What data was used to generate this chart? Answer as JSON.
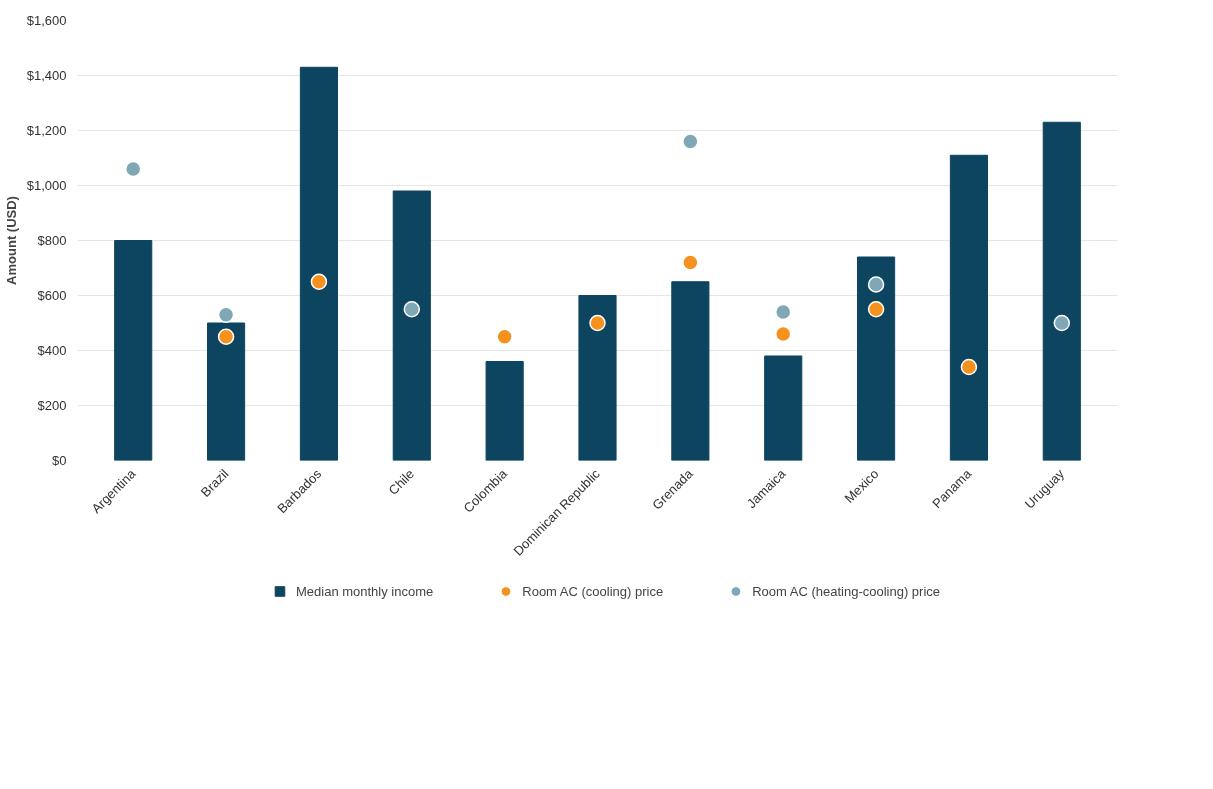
{
  "chart_data": {
    "type": "bar",
    "ylabel": "Amount (USD)",
    "categories": [
      "Argentina",
      "Brazil",
      "Barbados",
      "Chile",
      "Colombia",
      "Dominican Republic",
      "Grenada",
      "Jamaica",
      "Mexico",
      "Panama",
      "Uruguay"
    ],
    "series": [
      {
        "name": "Median monthly income",
        "color": "#0d4560",
        "values": [
          800,
          500,
          1430,
          980,
          360,
          600,
          650,
          380,
          740,
          1110,
          1230
        ]
      },
      {
        "name": "Room AC (cooling) price",
        "type": "scatter",
        "color": "#f5921e",
        "values": [
          null,
          450,
          650,
          null,
          450,
          500,
          720,
          460,
          550,
          340,
          null
        ]
      },
      {
        "name": "Room AC (heating-cooling) price",
        "type": "scatter",
        "color": "#7fa7b5",
        "values": [
          1060,
          530,
          null,
          550,
          null,
          null,
          1160,
          540,
          640,
          null,
          500
        ]
      }
    ],
    "ylim": [
      0,
      1600
    ],
    "yticks": [
      {
        "value": 0,
        "label": "$0"
      },
      {
        "value": 200,
        "label": "$200"
      },
      {
        "value": 400,
        "label": "$400"
      },
      {
        "value": 600,
        "label": "$600"
      },
      {
        "value": 800,
        "label": "$800"
      },
      {
        "value": 1000,
        "label": "$1,000"
      },
      {
        "value": 1200,
        "label": "$1,200"
      },
      {
        "value": 1400,
        "label": "$1,400"
      },
      {
        "value": 1600,
        "label": "$1,600"
      }
    ],
    "grid": "y",
    "legend": "bottom",
    "marker": "circle"
  }
}
